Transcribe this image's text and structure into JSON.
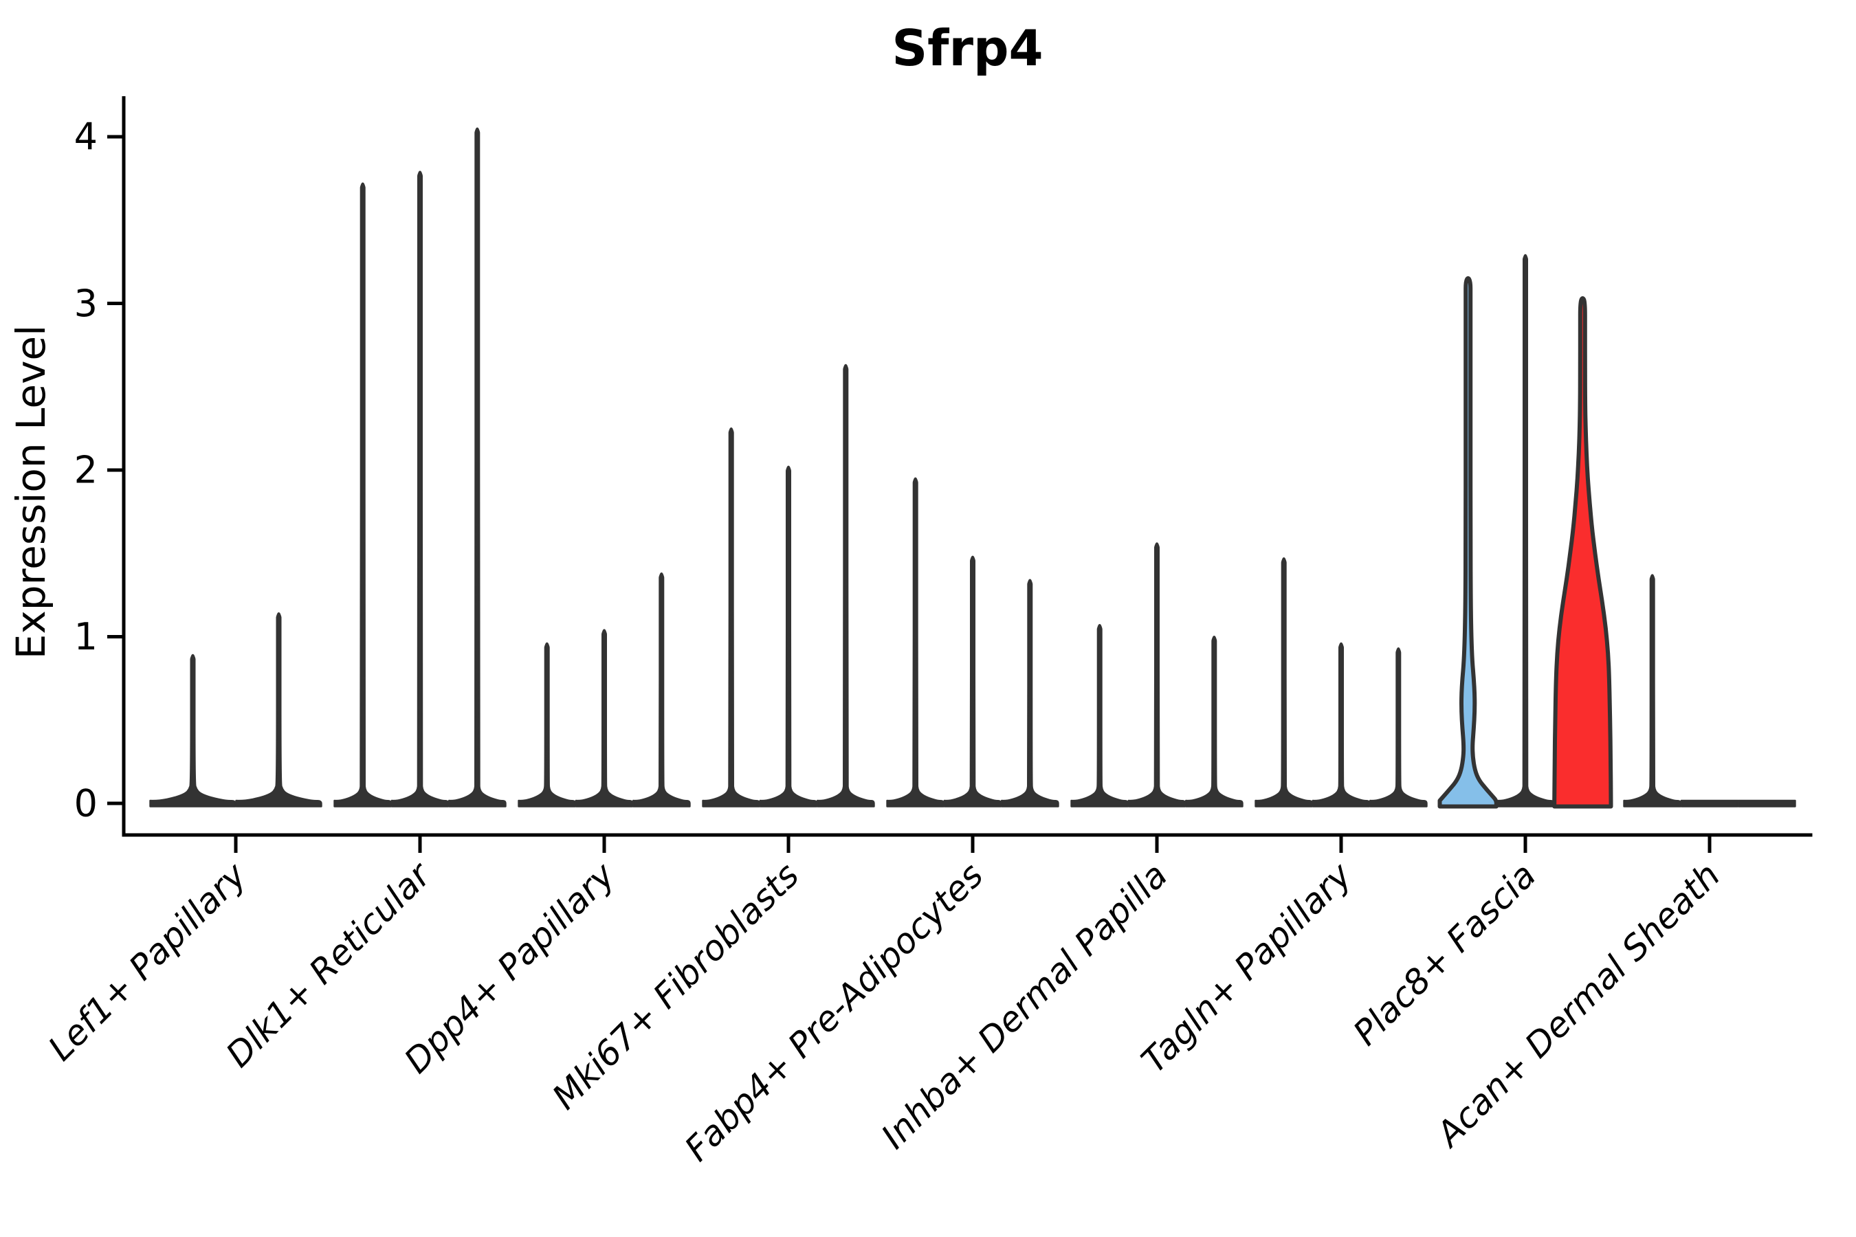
{
  "chart_data": {
    "type": "violin",
    "title": "Sfrp4",
    "ylabel": "Expression Level",
    "xlabel": "",
    "ylim": [
      0,
      4.23
    ],
    "yticks": [
      0,
      1,
      2,
      3,
      4
    ],
    "grid": false,
    "legend": "none",
    "colors": {
      "violin_outline": "#333333",
      "needle_fill": "#333333",
      "axis": "#000000",
      "highlight_blue": "#85BFE9",
      "highlight_red": "#FA2D2D"
    },
    "categories": [
      "Lef1+ Papillary",
      "Dlk1+ Reticular",
      "Dpp4+ Papillary",
      "Mki67+ Fibroblasts",
      "Fabp4+ Pre-Adipocytes",
      "Inhba+ Dermal Papilla",
      "Tagln+ Papillary",
      "Plac8+ Fascia",
      "Acan+ Dermal Sheath"
    ],
    "groups": [
      {
        "label": "Lef1+ Papillary",
        "violins": [
          {
            "kind": "needle",
            "max": 0.89
          },
          {
            "kind": "needle",
            "max": 1.14
          }
        ]
      },
      {
        "label": "Dlk1+ Reticular",
        "violins": [
          {
            "kind": "needle",
            "max": 3.72
          },
          {
            "kind": "needle",
            "max": 3.79
          },
          {
            "kind": "needle",
            "max": 4.05
          }
        ]
      },
      {
        "label": "Dpp4+ Papillary",
        "violins": [
          {
            "kind": "needle",
            "max": 0.96
          },
          {
            "kind": "needle",
            "max": 1.04
          },
          {
            "kind": "needle",
            "max": 1.38
          }
        ]
      },
      {
        "label": "Mki67+ Fibroblasts",
        "violins": [
          {
            "kind": "needle",
            "max": 2.25
          },
          {
            "kind": "needle",
            "max": 2.02
          },
          {
            "kind": "needle",
            "max": 2.63
          }
        ]
      },
      {
        "label": "Fabp4+ Pre-Adipocytes",
        "violins": [
          {
            "kind": "needle",
            "max": 1.95
          },
          {
            "kind": "needle",
            "max": 1.48
          },
          {
            "kind": "needle",
            "max": 1.34
          }
        ]
      },
      {
        "label": "Inhba+ Dermal Papilla",
        "violins": [
          {
            "kind": "needle",
            "max": 1.07
          },
          {
            "kind": "needle",
            "max": 1.56
          },
          {
            "kind": "needle",
            "max": 1.0
          }
        ]
      },
      {
        "label": "Tagln+ Papillary",
        "violins": [
          {
            "kind": "needle",
            "max": 1.47
          },
          {
            "kind": "needle",
            "max": 0.96
          },
          {
            "kind": "needle",
            "max": 0.93
          }
        ]
      },
      {
        "label": "Plac8+ Fascia",
        "violins": [
          {
            "kind": "density",
            "max": 3.15,
            "fill": "#85BFE9",
            "profile": [
              [
                0,
                1.0
              ],
              [
                0.04,
                0.88
              ],
              [
                0.09,
                0.62
              ],
              [
                0.14,
                0.38
              ],
              [
                0.2,
                0.24
              ],
              [
                0.28,
                0.165
              ],
              [
                0.35,
                0.155
              ],
              [
                0.45,
                0.2
              ],
              [
                0.55,
                0.235
              ],
              [
                0.65,
                0.235
              ],
              [
                0.75,
                0.2
              ],
              [
                0.85,
                0.15
              ],
              [
                1.0,
                0.115
              ],
              [
                1.2,
                0.095
              ],
              [
                1.6,
                0.085
              ],
              [
                2.2,
                0.085
              ],
              [
                2.8,
                0.085
              ],
              [
                3.05,
                0.085
              ],
              [
                3.15,
                0
              ]
            ]
          },
          {
            "kind": "needle",
            "max": 3.29
          },
          {
            "kind": "density",
            "max": 3.03,
            "fill": "#FA2D2D",
            "profile": [
              [
                0,
                1.0
              ],
              [
                0.25,
                0.99
              ],
              [
                0.5,
                0.97
              ],
              [
                0.75,
                0.94
              ],
              [
                0.9,
                0.9
              ],
              [
                1.05,
                0.82
              ],
              [
                1.2,
                0.7
              ],
              [
                1.35,
                0.56
              ],
              [
                1.5,
                0.44
              ],
              [
                1.65,
                0.33
              ],
              [
                1.8,
                0.25
              ],
              [
                1.95,
                0.18
              ],
              [
                2.1,
                0.135
              ],
              [
                2.25,
                0.105
              ],
              [
                2.4,
                0.09
              ],
              [
                2.6,
                0.085
              ],
              [
                2.85,
                0.085
              ],
              [
                3.03,
                0
              ]
            ]
          }
        ]
      },
      {
        "label": "Acan+ Dermal Sheath",
        "violins": [
          {
            "kind": "needle",
            "max": 1.37
          },
          {
            "kind": "flat",
            "max": 0
          },
          {
            "kind": "flat",
            "max": 0
          }
        ]
      }
    ]
  }
}
